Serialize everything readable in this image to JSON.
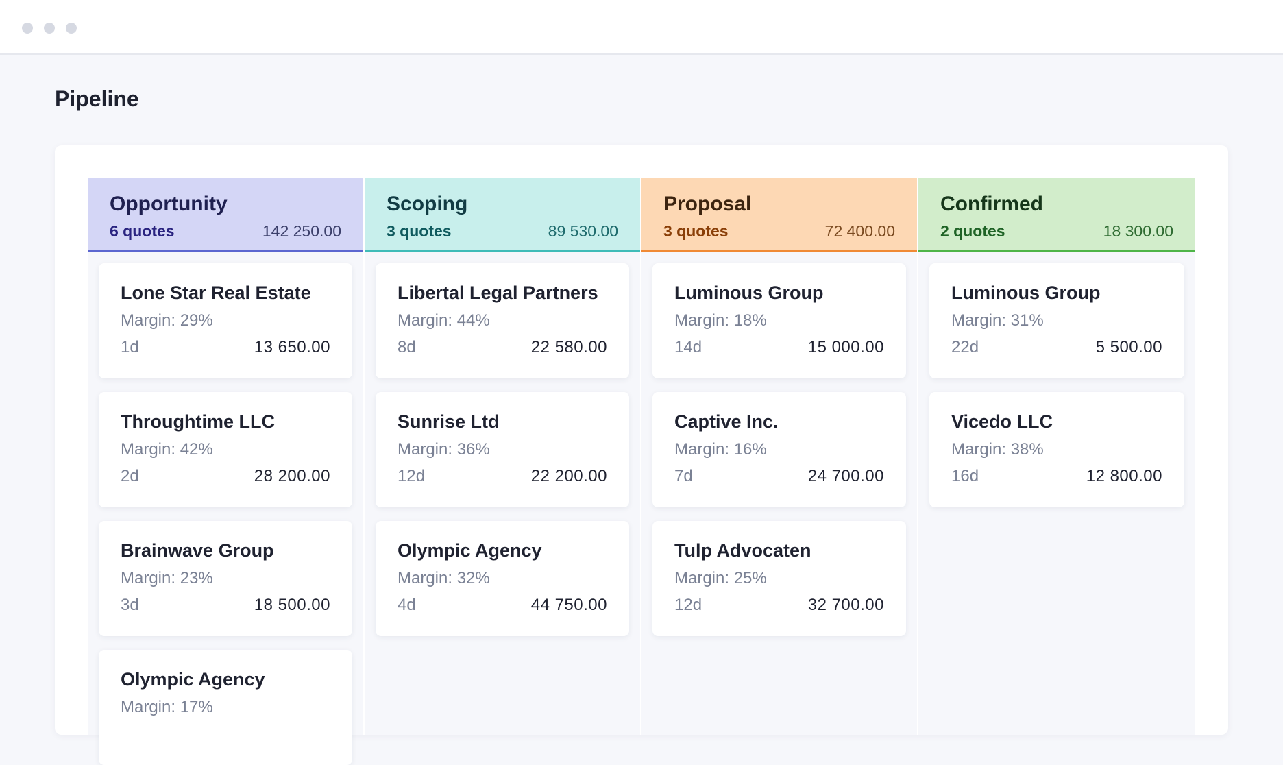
{
  "page": {
    "title": "Pipeline"
  },
  "columns": [
    {
      "name": "Opportunity",
      "count": "6 quotes",
      "total": "142 250.00",
      "colors": {
        "bg": "#d4d6f6",
        "border": "#5c67d0",
        "name": "#1f2050",
        "count": "#2a2480",
        "total": "#3b3f6a"
      },
      "cards": [
        {
          "name": "Lone Star Real Estate",
          "margin": "Margin: 29%",
          "age": "1d",
          "amount": "13 650.00"
        },
        {
          "name": "Throughtime LLC",
          "margin": "Margin: 42%",
          "age": "2d",
          "amount": "28 200.00"
        },
        {
          "name": "Brainwave Group",
          "margin": "Margin: 23%",
          "age": "3d",
          "amount": "18 500.00"
        },
        {
          "name": "Olympic Agency",
          "margin": "Margin: 17%",
          "age": "",
          "amount": ""
        }
      ]
    },
    {
      "name": "Scoping",
      "count": "3 quotes",
      "total": "89 530.00",
      "colors": {
        "bg": "#c8efec",
        "border": "#3fbcb8",
        "name": "#123c44",
        "count": "#0f5a5e",
        "total": "#1d6a6c"
      },
      "cards": [
        {
          "name": "Libertal Legal Partners",
          "margin": "Margin: 44%",
          "age": "8d",
          "amount": "22 580.00"
        },
        {
          "name": "Sunrise Ltd",
          "margin": "Margin: 36%",
          "age": "12d",
          "amount": "22 200.00"
        },
        {
          "name": "Olympic Agency",
          "margin": "Margin: 32%",
          "age": "4d",
          "amount": "44 750.00"
        }
      ]
    },
    {
      "name": "Proposal",
      "count": "3 quotes",
      "total": "72 400.00",
      "colors": {
        "bg": "#fdd8b4",
        "border": "#f08a35",
        "name": "#3c2410",
        "count": "#8a3f08",
        "total": "#7a4a20"
      },
      "cards": [
        {
          "name": "Luminous Group",
          "margin": "Margin: 18%",
          "age": "14d",
          "amount": "15 000.00"
        },
        {
          "name": "Captive Inc.",
          "margin": "Margin: 16%",
          "age": "7d",
          "amount": "24 700.00"
        },
        {
          "name": "Tulp Advocaten",
          "margin": "Margin: 25%",
          "age": "12d",
          "amount": "32 700.00"
        }
      ]
    },
    {
      "name": "Confirmed",
      "count": "2 quotes",
      "total": "18 300.00",
      "colors": {
        "bg": "#d2edcb",
        "border": "#4fb548",
        "name": "#16361a",
        "count": "#1f6326",
        "total": "#2d6a30"
      },
      "cards": [
        {
          "name": "Luminous Group",
          "margin": "Margin: 31%",
          "age": "22d",
          "amount": "5 500.00"
        },
        {
          "name": "Vicedo LLC",
          "margin": "Margin: 38%",
          "age": "16d",
          "amount": "12 800.00"
        }
      ]
    }
  ]
}
